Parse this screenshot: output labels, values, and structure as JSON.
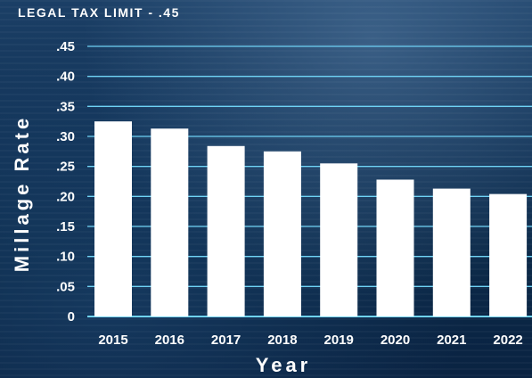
{
  "chart_data": {
    "type": "bar",
    "subtitle": "LEGAL TAX LIMIT - .45",
    "xlabel": "Year",
    "ylabel": "Millage Rate",
    "categories": [
      "2015",
      "2016",
      "2017",
      "2018",
      "2019",
      "2020",
      "2021",
      "2022"
    ],
    "values": [
      0.325,
      0.313,
      0.284,
      0.275,
      0.255,
      0.228,
      0.213,
      0.204
    ],
    "ylim": [
      0,
      0.45
    ],
    "yticks": [
      0,
      0.05,
      0.1,
      0.15,
      0.2,
      0.25,
      0.3,
      0.35,
      0.4,
      0.45
    ],
    "ytick_labels": [
      "0",
      ".05",
      ".10",
      ".15",
      ".20",
      ".25",
      ".30",
      ".35",
      ".40",
      ".45"
    ],
    "grid": true,
    "colors": {
      "bar": "#ffffff",
      "gridline": "#6fd3f5",
      "text": "#ffffff"
    }
  }
}
